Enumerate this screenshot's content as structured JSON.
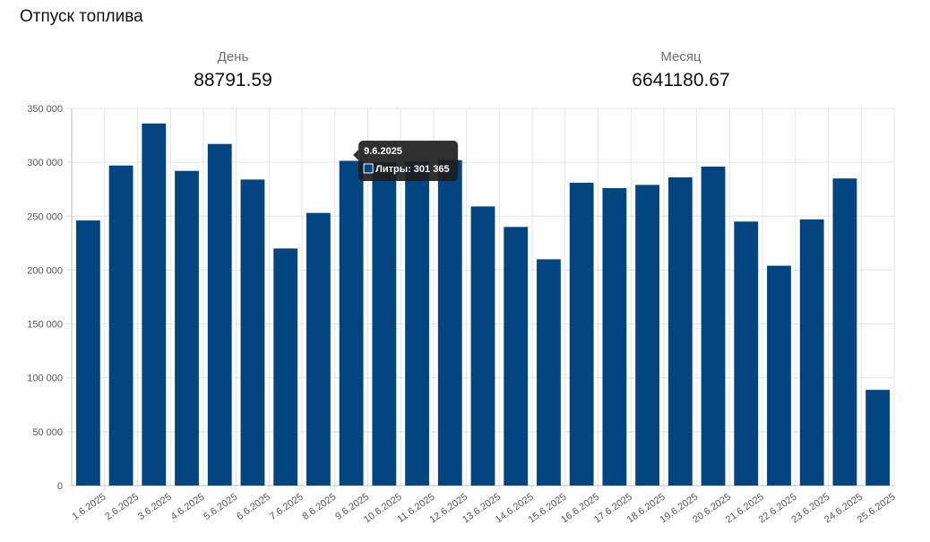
{
  "page": {
    "title": "Отпуск топлива"
  },
  "stats": {
    "day": {
      "label": "День",
      "value": "88791.59"
    },
    "month": {
      "label": "Месяц",
      "value": "6641180.67"
    }
  },
  "colors": {
    "bar": "#004480",
    "grid": "#e4e4e4",
    "tooltip_bg": "#1e1e1e"
  },
  "chart_data": {
    "type": "bar",
    "title": "",
    "xlabel": "",
    "ylabel": "",
    "ylim": [
      0,
      350000
    ],
    "y_ticks": [
      0,
      50000,
      100000,
      150000,
      200000,
      250000,
      300000,
      350000
    ],
    "y_tick_labels": [
      "0",
      "50 000",
      "100 000",
      "150 000",
      "200 000",
      "250 000",
      "300 000",
      "350 000"
    ],
    "grid": true,
    "categories": [
      "1.6.2025",
      "2.6.2025",
      "3.6.2025",
      "4.6.2025",
      "5.6.2025",
      "6.6.2025",
      "7.6.2025",
      "8.6.2025",
      "9.6.2025",
      "10.6.2025",
      "11.6.2025",
      "12.6.2025",
      "13.6.2025",
      "14.6.2025",
      "15.6.2025",
      "16.6.2025",
      "17.6.2025",
      "18.6.2025",
      "19.6.2025",
      "20.6.2025",
      "21.6.2025",
      "22.6.2025",
      "23.6.2025",
      "24.6.2025",
      "25.6.2025"
    ],
    "series": [
      {
        "name": "Литры",
        "values": [
          246000,
          297000,
          336000,
          292000,
          317000,
          284000,
          220000,
          253000,
          301365,
          300000,
          301000,
          302000,
          259000,
          240000,
          210000,
          281000,
          276000,
          279000,
          286000,
          296000,
          245000,
          204000,
          247000,
          285000,
          88792
        ]
      }
    ],
    "tooltip": {
      "category_index": 8,
      "title": "9.6.2025",
      "text": "Литры: 301 365"
    }
  }
}
